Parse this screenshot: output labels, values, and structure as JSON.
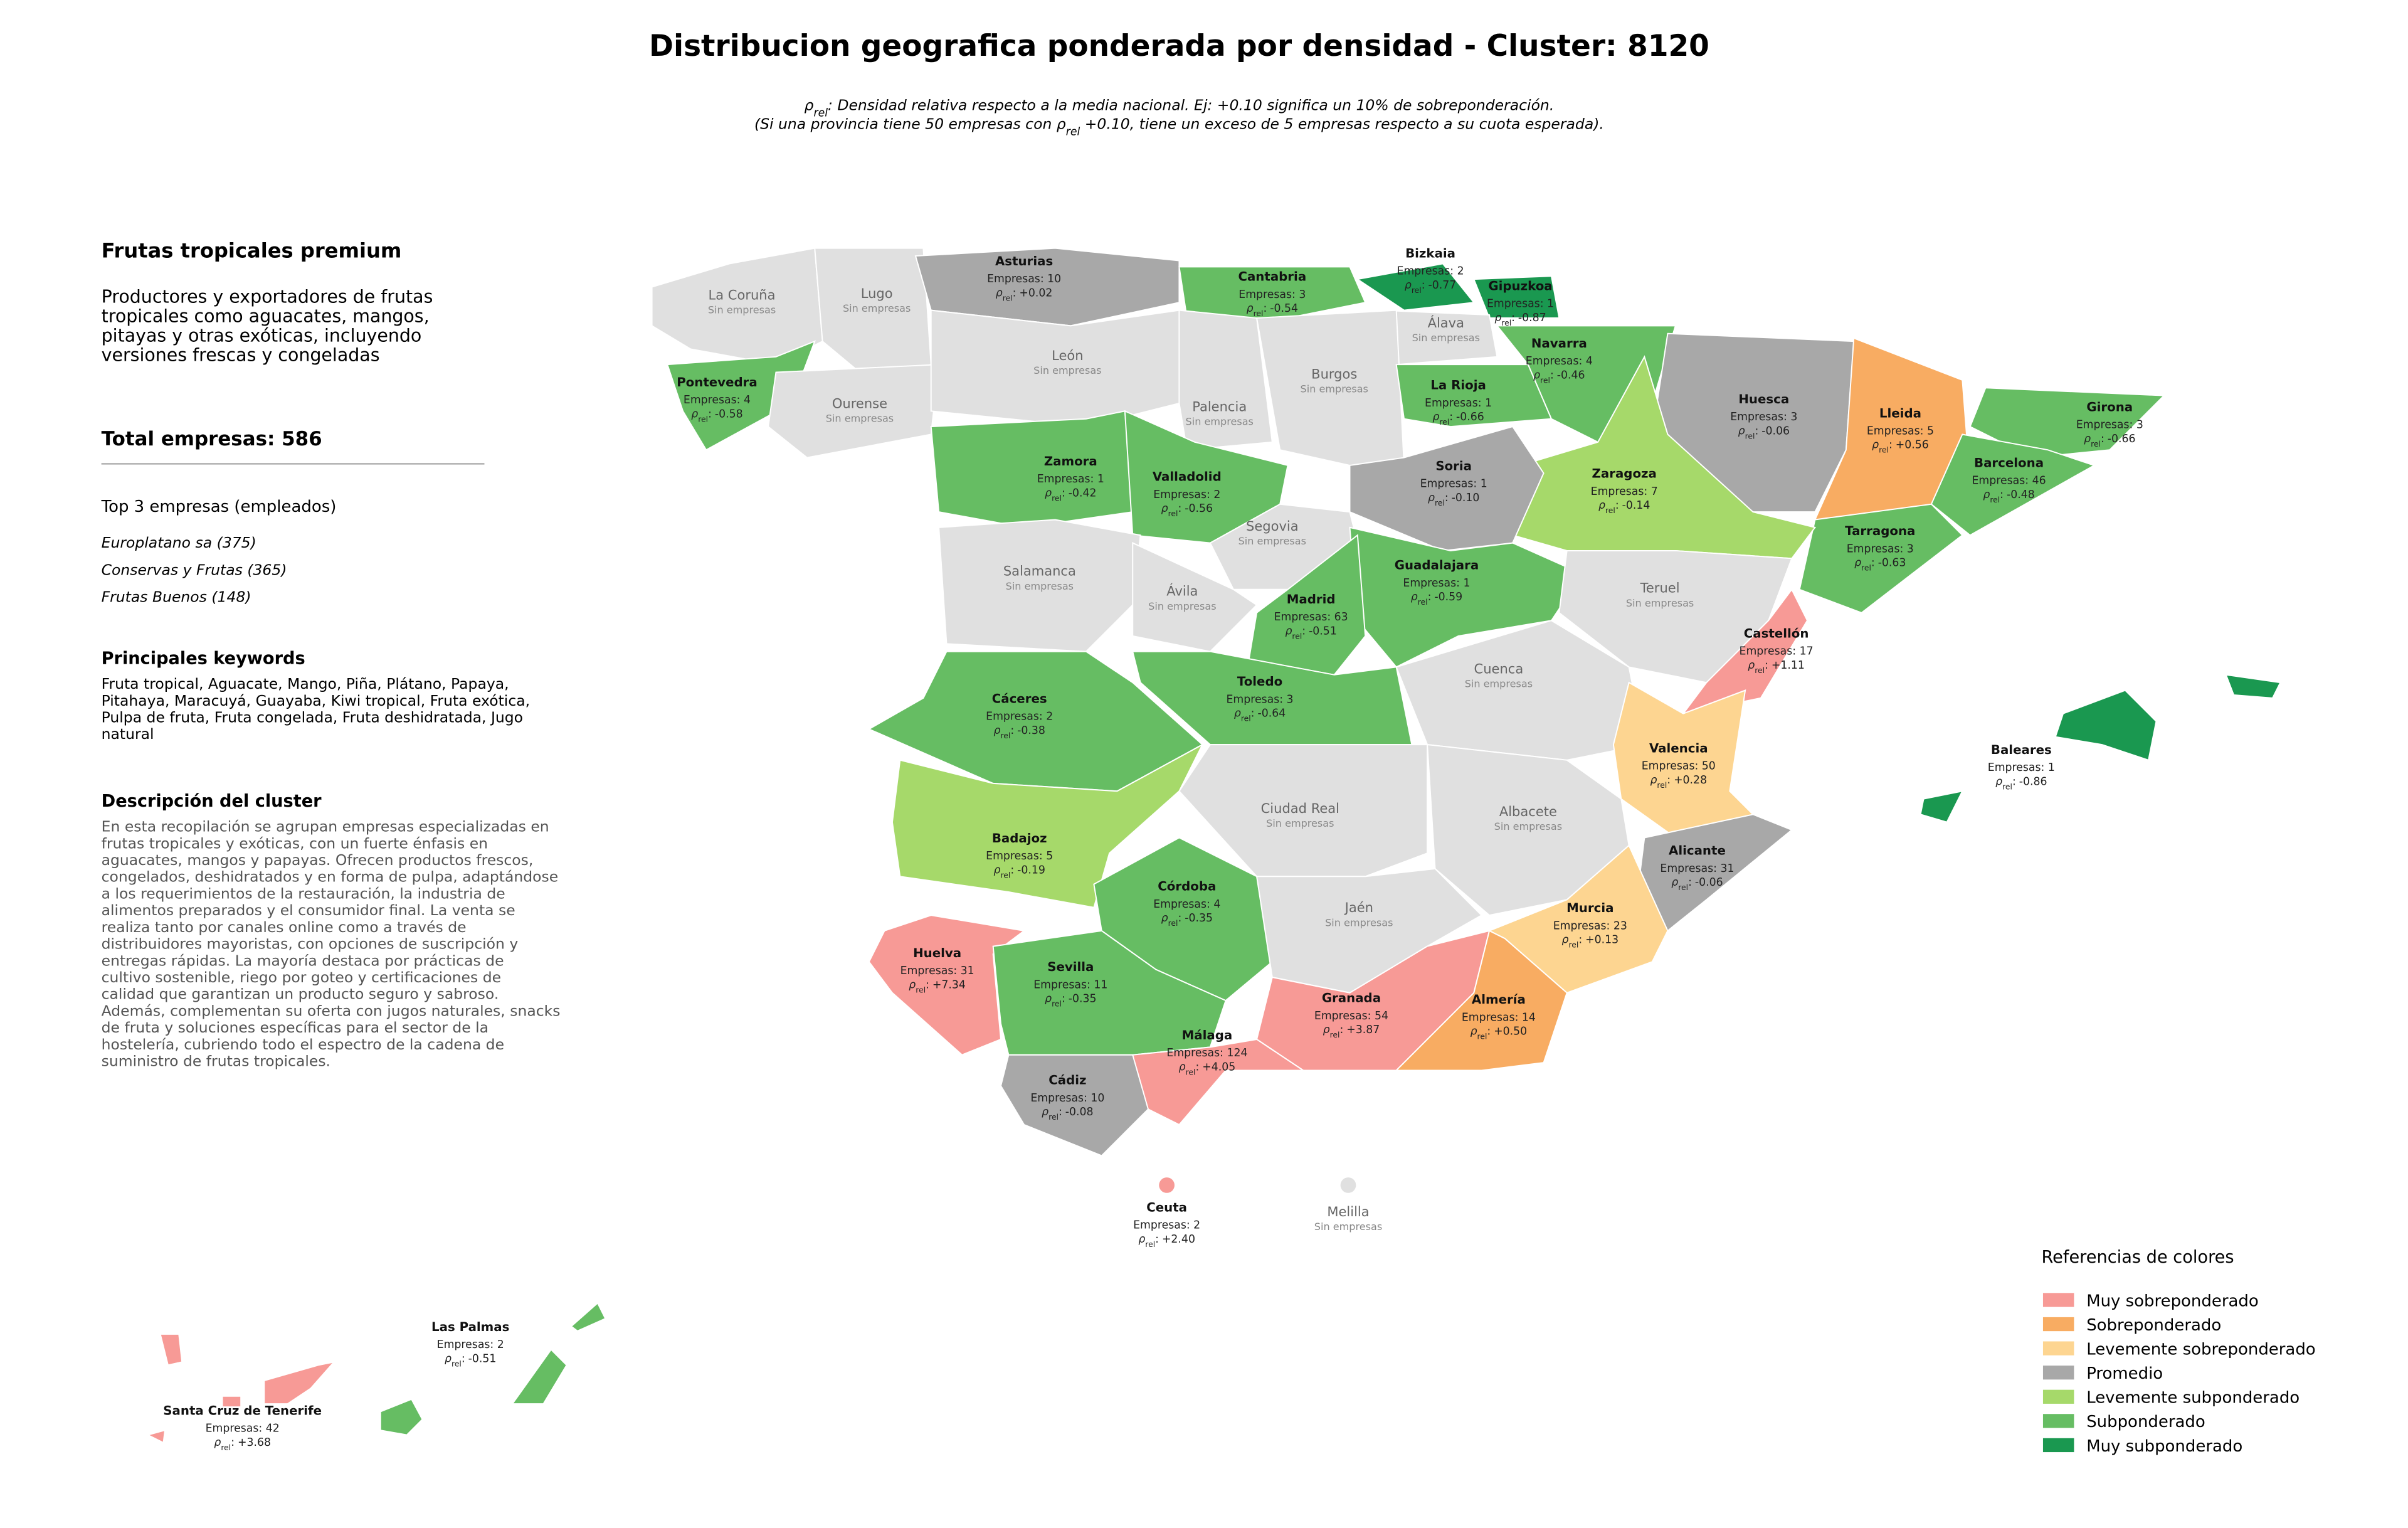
{
  "header": {
    "title": "Distribucion geografica ponderada por densidad - Cluster: 8120",
    "subtitle_lines": [
      [
        "ρ",
        "rel",
        ": Densidad relativa respecto a la media nacional. Ej: +0.10 significa un 10% de sobreponderación."
      ],
      [
        "(Si una provincia tiene 50 empresas con ρ",
        "rel",
        " +0.10, tiene un exceso de 5 empresas respecto a su cuota esperada)."
      ]
    ]
  },
  "panel": {
    "title": "Frutas tropicales premium",
    "summary_lines": [
      "Productores y exportadores de frutas",
      "tropicales como aguacates, mangos,",
      "pitayas y otras exóticas, incluyendo",
      "versiones frescas y congeladas"
    ],
    "total": "Total empresas: 586",
    "top_title": "Top 3 empresas (empleados)",
    "top": [
      "Europlatano sa (375)",
      "Conservas y Frutas (365)",
      "Frutas Buenos (148)"
    ],
    "keywords_title": "Principales keywords",
    "keywords_lines": [
      "Fruta tropical, Aguacate, Mango, Piña, Plátano, Papaya,",
      "Pitahaya, Maracuyá, Guayaba, Kiwi tropical, Fruta exótica,",
      "Pulpa de fruta, Fruta congelada, Fruta deshidratada, Jugo",
      "natural"
    ],
    "description_title": "Descripción del cluster",
    "description_lines": [
      "En esta recopilación se agrupan empresas especializadas en",
      "frutas tropicales y exóticas, con un fuerte énfasis en",
      "aguacates, mangos y papayas. Ofrecen productos frescos,",
      "congelados, deshidratados y en forma de pulpa, adaptándose",
      "a los requerimientos de la restauración, la industria de",
      "alimentos preparados y el consumidor final. La venta se",
      "realiza tanto por canales online como a través de",
      "distribuidores mayoristas, con opciones de suscripción y",
      "entregas rápidas. La mayoría destaca por prácticas de",
      "cultivo sostenible, riego por goteo y certificaciones de",
      "calidad que garantizan un producto seguro y sabroso.",
      "Además, complementan su oferta con jugos naturales, snacks",
      "de fruta y soluciones específicas para el sector de la",
      "hostelería, cubriendo todo el espectro de la cadena de",
      "suministro de frutas tropicales."
    ]
  },
  "map": {
    "rho_symbol": "ρ",
    "rho_sub": "rel",
    "rho_colon": ":",
    "provinces": [
      {
        "name": "La Coruña",
        "color": "#e0e0e0",
        "note": "Sin empresas"
      },
      {
        "name": "Lugo",
        "color": "#e0e0e0",
        "note": "Sin empresas"
      },
      {
        "name": "Asturias",
        "color": "#a8a8a8",
        "empresas": "Empresas: 10",
        "rho": "+0.02"
      },
      {
        "name": "Cantabria",
        "color": "#66bd63",
        "empresas": "Empresas: 3",
        "rho": "-0.54"
      },
      {
        "name": "Bizkaia",
        "color": "#1a9850",
        "empresas": "Empresas: 2",
        "rho": "-0.77"
      },
      {
        "name": "Gipuzkoa",
        "color": "#1a9850",
        "empresas": "Empresas: 1",
        "rho": "-0.87"
      },
      {
        "name": "Álava",
        "color": "#e0e0e0",
        "note": "Sin empresas"
      },
      {
        "name": "Pontevedra",
        "color": "#66bd63",
        "empresas": "Empresas: 4",
        "rho": "-0.58"
      },
      {
        "name": "Ourense",
        "color": "#e0e0e0",
        "note": "Sin empresas"
      },
      {
        "name": "León",
        "color": "#e0e0e0",
        "note": "Sin empresas"
      },
      {
        "name": "Palencia",
        "color": "#e0e0e0",
        "note": "Sin empresas"
      },
      {
        "name": "Burgos",
        "color": "#e0e0e0",
        "note": "Sin empresas"
      },
      {
        "name": "La Rioja",
        "color": "#66bd63",
        "empresas": "Empresas: 1",
        "rho": "-0.66"
      },
      {
        "name": "Navarra",
        "color": "#66bd63",
        "empresas": "Empresas: 4",
        "rho": "-0.46"
      },
      {
        "name": "Huesca",
        "color": "#a8a8a8",
        "empresas": "Empresas: 3",
        "rho": "-0.06"
      },
      {
        "name": "Lleida",
        "color": "#f8ac62",
        "empresas": "Empresas: 5",
        "rho": "+0.56"
      },
      {
        "name": "Girona",
        "color": "#66bd63",
        "empresas": "Empresas: 3",
        "rho": "-0.66"
      },
      {
        "name": "Barcelona",
        "color": "#66bd63",
        "empresas": "Empresas: 46",
        "rho": "-0.48"
      },
      {
        "name": "Tarragona",
        "color": "#66bd63",
        "empresas": "Empresas: 3",
        "rho": "-0.63"
      },
      {
        "name": "Zaragoza",
        "color": "#a6d96a",
        "empresas": "Empresas: 7",
        "rho": "-0.14"
      },
      {
        "name": "Zamora",
        "color": "#66bd63",
        "empresas": "Empresas: 1",
        "rho": "-0.42"
      },
      {
        "name": "Valladolid",
        "color": "#66bd63",
        "empresas": "Empresas: 2",
        "rho": "-0.56"
      },
      {
        "name": "Soria",
        "color": "#a8a8a8",
        "empresas": "Empresas: 1",
        "rho": "-0.10"
      },
      {
        "name": "Segovia",
        "color": "#e0e0e0",
        "note": "Sin empresas"
      },
      {
        "name": "Salamanca",
        "color": "#e0e0e0",
        "note": "Sin empresas"
      },
      {
        "name": "Ávila",
        "color": "#e0e0e0",
        "note": "Sin empresas"
      },
      {
        "name": "Guadalajara",
        "color": "#66bd63",
        "empresas": "Empresas: 1",
        "rho": "-0.59"
      },
      {
        "name": "Madrid",
        "color": "#66bd63",
        "empresas": "Empresas: 63",
        "rho": "-0.51"
      },
      {
        "name": "Teruel",
        "color": "#e0e0e0",
        "note": "Sin empresas"
      },
      {
        "name": "Cáceres",
        "color": "#66bd63",
        "empresas": "Empresas: 2",
        "rho": "-0.38"
      },
      {
        "name": "Toledo",
        "color": "#66bd63",
        "empresas": "Empresas: 3",
        "rho": "-0.64"
      },
      {
        "name": "Cuenca",
        "color": "#e0e0e0",
        "note": "Sin empresas"
      },
      {
        "name": "Castellón",
        "color": "#f79a96",
        "empresas": "Empresas: 17",
        "rho": "+1.11"
      },
      {
        "name": "Valencia",
        "color": "#fdd591",
        "empresas": "Empresas: 50",
        "rho": "+0.28"
      },
      {
        "name": "Badajoz",
        "color": "#a6d96a",
        "empresas": "Empresas: 5",
        "rho": "-0.19"
      },
      {
        "name": "Ciudad Real",
        "color": "#e0e0e0",
        "note": "Sin empresas"
      },
      {
        "name": "Albacete",
        "color": "#e0e0e0",
        "note": "Sin empresas"
      },
      {
        "name": "Alicante",
        "color": "#a8a8a8",
        "empresas": "Empresas: 31",
        "rho": "-0.06"
      },
      {
        "name": "Córdoba",
        "color": "#66bd63",
        "empresas": "Empresas: 4",
        "rho": "-0.35"
      },
      {
        "name": "Jaén",
        "color": "#e0e0e0",
        "note": "Sin empresas"
      },
      {
        "name": "Murcia",
        "color": "#fdd591",
        "empresas": "Empresas: 23",
        "rho": "+0.13"
      },
      {
        "name": "Huelva",
        "color": "#f79a96",
        "empresas": "Empresas: 31",
        "rho": "+7.34"
      },
      {
        "name": "Sevilla",
        "color": "#66bd63",
        "empresas": "Empresas: 11",
        "rho": "-0.35"
      },
      {
        "name": "Granada",
        "color": "#f79a96",
        "empresas": "Empresas: 54",
        "rho": "+3.87"
      },
      {
        "name": "Almería",
        "color": "#f8ac62",
        "empresas": "Empresas: 14",
        "rho": "+0.50"
      },
      {
        "name": "Málaga",
        "color": "#f79a96",
        "empresas": "Empresas: 124",
        "rho": "+4.05"
      },
      {
        "name": "Cádiz",
        "color": "#a8a8a8",
        "empresas": "Empresas: 10",
        "rho": "-0.08"
      },
      {
        "name": "Baleares",
        "color": "#1a9850",
        "empresas": "Empresas: 1",
        "rho": "-0.86"
      },
      {
        "name": "Ceuta",
        "color": "#f79a96",
        "empresas": "Empresas: 2",
        "rho": "+2.40"
      },
      {
        "name": "Melilla",
        "color": "#e0e0e0",
        "note": "Sin empresas"
      },
      {
        "name": "Las Palmas",
        "color": "#66bd63",
        "empresas": "Empresas: 2",
        "rho": "-0.51"
      },
      {
        "name": "Santa Cruz de Tenerife",
        "color": "#f79a96",
        "empresas": "Empresas: 42",
        "rho": "+3.68"
      }
    ]
  },
  "legend": {
    "title": "Referencias de colores",
    "items": [
      {
        "name": "Muy sobreponderado",
        "color": "#f79a96"
      },
      {
        "name": "Sobreponderado",
        "color": "#f8ac62"
      },
      {
        "name": "Levemente sobreponderado",
        "color": "#fdd591"
      },
      {
        "name": "Promedio",
        "color": "#a8a8a8"
      },
      {
        "name": "Levemente subponderado",
        "color": "#a6d96a"
      },
      {
        "name": "Subponderado",
        "color": "#66bd63"
      },
      {
        "name": "Muy subponderado",
        "color": "#1a9850"
      }
    ]
  }
}
